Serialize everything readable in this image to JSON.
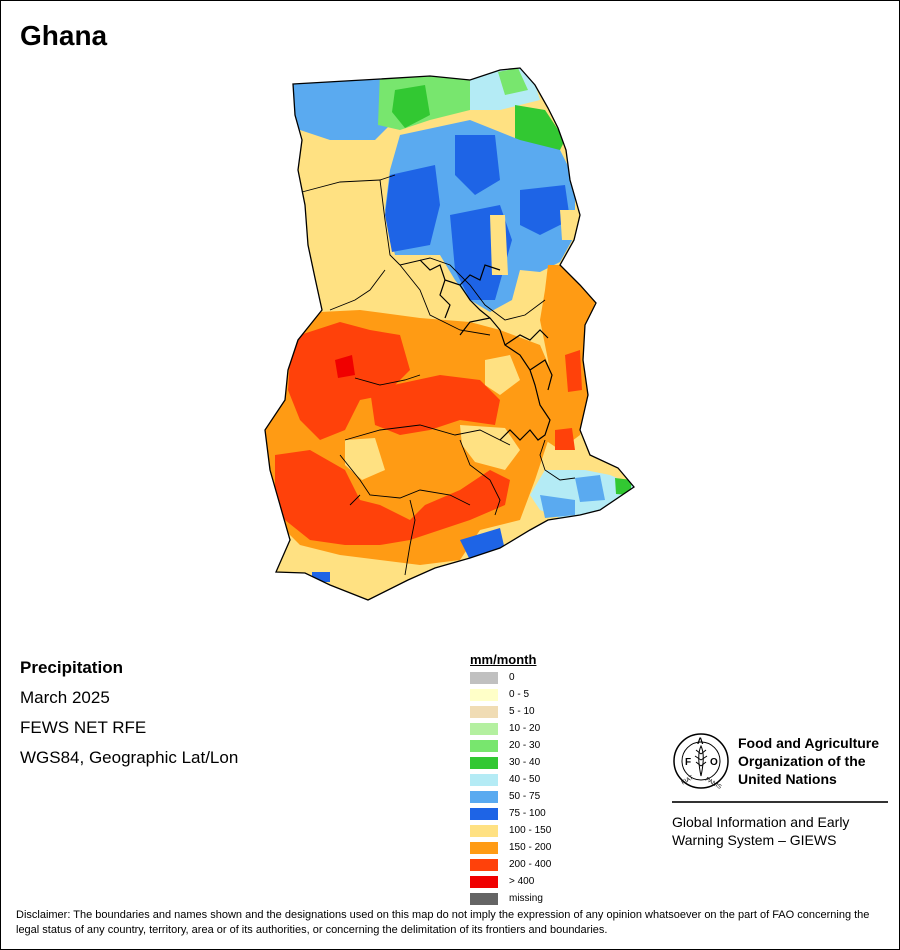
{
  "title": "Ghana",
  "info": {
    "heading": "Precipitation",
    "period": "March 2025",
    "source": "FEWS NET RFE",
    "projection": "WGS84, Geographic Lat/Lon"
  },
  "legend": {
    "title": "mm/month",
    "items": [
      {
        "label": "0",
        "color": "#c0c0c0"
      },
      {
        "label": "0 - 5",
        "color": "#ffffc8"
      },
      {
        "label": "5 - 10",
        "color": "#f0dcb4"
      },
      {
        "label": "10 - 20",
        "color": "#b4f0a0"
      },
      {
        "label": "20 - 30",
        "color": "#78e66e"
      },
      {
        "label": "30 - 40",
        "color": "#32c832"
      },
      {
        "label": "40 - 50",
        "color": "#b4ebf5"
      },
      {
        "label": "50 - 75",
        "color": "#5aaaf0"
      },
      {
        "label": "75 - 100",
        "color": "#1e64e6"
      },
      {
        "label": "100 - 150",
        "color": "#ffe182"
      },
      {
        "label": "150 - 200",
        "color": "#ff9b14"
      },
      {
        "label": "200 - 400",
        "color": "#ff410a"
      },
      {
        "label": "> 400",
        "color": "#f00000"
      },
      {
        "label": "missing",
        "color": "#646464"
      }
    ]
  },
  "fao": {
    "name_line1": "Food and Agriculture",
    "name_line2": "Organization of the",
    "name_line3": "United Nations",
    "emblem_letters": "FAO",
    "motto": "FIAT PANIS",
    "giews_line1": "Global Information and Early",
    "giews_line2": "Warning System – GIEWS"
  },
  "disclaimer": "Disclaimer: The boundaries and names shown and the designations used on this map do not imply the expression of any opinion whatsoever on the part of FAO concerning the legal status of any country, territory, area or of its authorities, or concerning the delimitation of its frontiers and boundaries."
}
